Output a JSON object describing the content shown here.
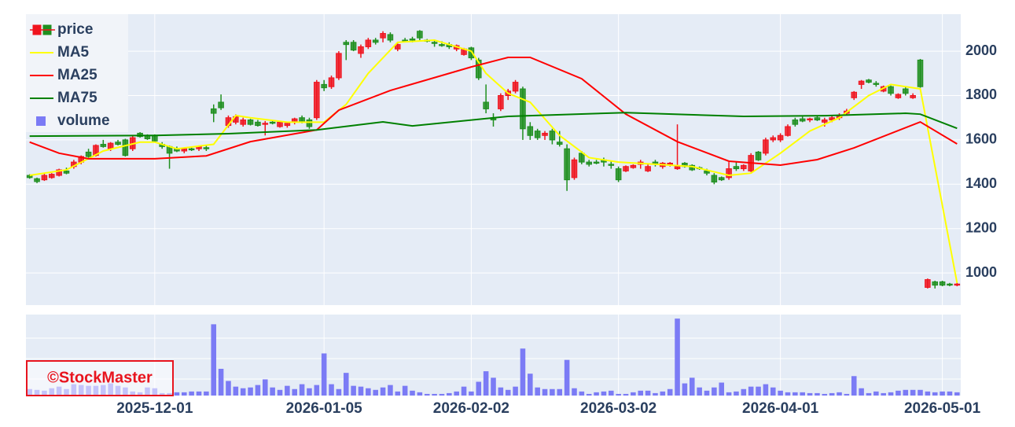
{
  "chart_data": {
    "type": "candlestick",
    "watermark": "©StockMaster",
    "x": [
      "2025-11-06",
      "2025-11-07",
      "2025-11-10",
      "2025-11-11",
      "2025-11-12",
      "2025-11-13",
      "2025-11-14",
      "2025-11-17",
      "2025-11-18",
      "2025-11-19",
      "2025-11-20",
      "2025-11-21",
      "2025-11-24",
      "2025-11-25",
      "2025-11-26",
      "2025-11-27",
      "2025-11-28",
      "2025-12-01",
      "2025-12-02",
      "2025-12-03",
      "2025-12-04",
      "2025-12-05",
      "2025-12-08",
      "2025-12-09",
      "2025-12-10",
      "2025-12-11",
      "2025-12-12",
      "2025-12-15",
      "2025-12-16",
      "2025-12-17",
      "2025-12-18",
      "2025-12-19",
      "2025-12-22",
      "2025-12-23",
      "2025-12-24",
      "2025-12-25",
      "2025-12-26",
      "2025-12-29",
      "2025-12-30",
      "2025-12-31",
      "2026-01-05",
      "2026-01-06",
      "2026-01-07",
      "2026-01-08",
      "2026-01-09",
      "2026-01-12",
      "2026-01-13",
      "2026-01-14",
      "2026-01-15",
      "2026-01-16",
      "2026-01-19",
      "2026-01-20",
      "2026-01-21",
      "2026-01-22",
      "2026-01-23",
      "2026-01-26",
      "2026-01-27",
      "2026-01-28",
      "2026-01-29",
      "2026-01-30",
      "2026-02-02",
      "2026-02-03",
      "2026-02-04",
      "2026-02-05",
      "2026-02-06",
      "2026-02-09",
      "2026-02-10",
      "2026-02-11",
      "2026-02-12",
      "2026-02-13",
      "2026-02-16",
      "2026-02-17",
      "2026-02-18",
      "2026-02-19",
      "2026-02-20",
      "2026-02-23",
      "2026-02-24",
      "2026-02-25",
      "2026-02-26",
      "2026-02-27",
      "2026-03-02",
      "2026-03-03",
      "2026-03-04",
      "2026-03-05",
      "2026-03-06",
      "2026-03-09",
      "2026-03-10",
      "2026-03-11",
      "2026-03-12",
      "2026-03-13",
      "2026-03-16",
      "2026-03-17",
      "2026-03-18",
      "2026-03-19",
      "2026-03-20",
      "2026-03-23",
      "2026-03-24",
      "2026-03-25",
      "2026-03-26",
      "2026-03-27",
      "2026-03-30",
      "2026-03-31",
      "2026-04-01",
      "2026-04-02",
      "2026-04-03",
      "2026-04-06",
      "2026-04-07",
      "2026-04-08",
      "2026-04-09",
      "2026-04-10",
      "2026-04-13",
      "2026-04-14",
      "2026-04-15",
      "2026-04-16",
      "2026-04-17",
      "2026-04-20",
      "2026-04-21",
      "2026-04-22",
      "2026-04-23",
      "2026-04-24",
      "2026-04-27",
      "2026-04-28",
      "2026-04-29",
      "2026-04-30",
      "2026-05-01",
      "2026-05-04",
      "2026-05-05"
    ],
    "xticks": [
      "2025-12-01",
      "2026-01-05",
      "2026-02-02",
      "2026-03-02",
      "2026-04-01",
      "2026-05-01"
    ],
    "ylim": [
      855,
      2167
    ],
    "yticks": [
      1000,
      1200,
      1400,
      1600,
      1800,
      2000
    ],
    "y2lim": [
      0,
      100
    ],
    "grid": true,
    "legend": "top-left",
    "series": [
      {
        "name": "price",
        "type": "candlestick",
        "increasing_color": "#f0141e",
        "decreasing_color": "#1f8f1f",
        "open": [
          1440,
          1425,
          1420,
          1430,
          1440,
          1460,
          1480,
          1500,
          1545,
          1530,
          1580,
          1560,
          1590,
          1600,
          1560,
          1630,
          1620,
          1620,
          1580,
          1570,
          1560,
          1550,
          1560,
          1560,
          1565,
          1740,
          1770,
          1665,
          1680,
          1670,
          1690,
          1680,
          1670,
          1680,
          1660,
          1665,
          1680,
          1700,
          1690,
          1700,
          1850,
          1840,
          1880,
          2040,
          2040,
          1990,
          2020,
          2050,
          2060,
          2075,
          2010,
          2050,
          2055,
          2090,
          2050,
          2040,
          2030,
          2030,
          2010,
          1985,
          2015,
          1960,
          1770,
          1700,
          1740,
          1800,
          1820,
          1830,
          1660,
          1640,
          1620,
          1640,
          1590,
          1560,
          1430,
          1540,
          1500,
          1500,
          1510,
          1490,
          1470,
          1460,
          1475,
          1490,
          1460,
          1500,
          1480,
          1490,
          1470,
          1495,
          1485,
          1475,
          1460,
          1440,
          1430,
          1430,
          1480,
          1470,
          1460,
          1545,
          1540,
          1600,
          1600,
          1620,
          1690,
          1695,
          1690,
          1700,
          1680,
          1690,
          1700,
          1720,
          1790,
          1850,
          1870,
          1855,
          1820,
          1840,
          1790,
          1830,
          1790,
          1960,
          935,
          960,
          960,
          950,
          945
        ],
        "high": [
          1445,
          1430,
          1450,
          1450,
          1470,
          1475,
          1510,
          1530,
          1560,
          1580,
          1600,
          1590,
          1600,
          1605,
          1620,
          1635,
          1625,
          1625,
          1590,
          1575,
          1570,
          1565,
          1570,
          1575,
          1575,
          1760,
          1805,
          1710,
          1715,
          1700,
          1695,
          1690,
          1685,
          1690,
          1685,
          1680,
          1700,
          1710,
          1700,
          1870,
          1870,
          1890,
          2000,
          2050,
          2050,
          2030,
          2060,
          2060,
          2090,
          2085,
          2035,
          2060,
          2065,
          2095,
          2055,
          2050,
          2045,
          2040,
          2030,
          2015,
          2020,
          1970,
          1850,
          1720,
          1810,
          1830,
          1870,
          1840,
          1680,
          1650,
          1640,
          1650,
          1640,
          1580,
          1520,
          1550,
          1510,
          1510,
          1520,
          1505,
          1480,
          1485,
          1490,
          1510,
          1490,
          1510,
          1500,
          1500,
          1670,
          1500,
          1490,
          1480,
          1470,
          1450,
          1435,
          1500,
          1500,
          1490,
          1540,
          1550,
          1610,
          1620,
          1630,
          1670,
          1700,
          1705,
          1700,
          1710,
          1700,
          1710,
          1720,
          1740,
          1820,
          1870,
          1875,
          1865,
          1845,
          1845,
          1810,
          1840,
          1810,
          1965,
          975,
          965,
          965,
          955,
          955
        ],
        "low": [
          1425,
          1405,
          1415,
          1425,
          1435,
          1445,
          1470,
          1490,
          1520,
          1525,
          1565,
          1550,
          1575,
          1525,
          1550,
          1610,
          1600,
          1590,
          1560,
          1470,
          1545,
          1540,
          1550,
          1550,
          1550,
          1680,
          1735,
          1655,
          1670,
          1660,
          1665,
          1660,
          1620,
          1670,
          1655,
          1655,
          1670,
          1675,
          1650,
          1690,
          1820,
          1830,
          1870,
          1960,
          2000,
          1970,
          2010,
          2030,
          2040,
          2040,
          2000,
          2040,
          2040,
          2050,
          2040,
          2020,
          2020,
          2010,
          2000,
          1980,
          1960,
          1870,
          1720,
          1660,
          1730,
          1780,
          1810,
          1600,
          1600,
          1600,
          1600,
          1580,
          1570,
          1370,
          1420,
          1490,
          1480,
          1490,
          1480,
          1470,
          1410,
          1455,
          1470,
          1470,
          1455,
          1480,
          1470,
          1480,
          1465,
          1475,
          1460,
          1465,
          1440,
          1400,
          1415,
          1420,
          1460,
          1460,
          1455,
          1505,
          1530,
          1590,
          1590,
          1615,
          1660,
          1680,
          1680,
          1685,
          1660,
          1680,
          1690,
          1710,
          1780,
          1830,
          1855,
          1840,
          1815,
          1800,
          1785,
          1800,
          1785,
          1835,
          930,
          930,
          940,
          940,
          940
        ],
        "close": [
          1430,
          1412,
          1440,
          1445,
          1465,
          1450,
          1500,
          1525,
          1525,
          1575,
          1570,
          1585,
          1580,
          1530,
          1610,
          1615,
          1605,
          1595,
          1570,
          1540,
          1550,
          1560,
          1555,
          1570,
          1560,
          1720,
          1745,
          1700,
          1705,
          1690,
          1670,
          1665,
          1675,
          1675,
          1680,
          1675,
          1695,
          1680,
          1660,
          1860,
          1835,
          1880,
          1990,
          2030,
          2005,
          2020,
          2050,
          2040,
          2080,
          2050,
          2030,
          2045,
          2050,
          2060,
          2045,
          2035,
          2025,
          2020,
          2025,
          2010,
          1970,
          1880,
          1740,
          1690,
          1800,
          1820,
          1860,
          1650,
          1620,
          1610,
          1630,
          1600,
          1580,
          1420,
          1510,
          1500,
          1490,
          1495,
          1500,
          1485,
          1420,
          1480,
          1485,
          1500,
          1480,
          1490,
          1495,
          1495,
          1480,
          1480,
          1465,
          1470,
          1450,
          1410,
          1420,
          1470,
          1470,
          1485,
          1530,
          1510,
          1600,
          1610,
          1620,
          1660,
          1670,
          1685,
          1695,
          1690,
          1690,
          1700,
          1710,
          1730,
          1815,
          1865,
          1860,
          1850,
          1840,
          1810,
          1805,
          1810,
          1800,
          1840,
          970,
          945,
          945,
          945,
          950
        ]
      },
      {
        "name": "MA5",
        "type": "line",
        "color": "#ffff00",
        "x": [
          "2025-11-06",
          "2025-11-13",
          "2025-11-20",
          "2025-11-27",
          "2025-12-01",
          "2025-12-04",
          "2025-12-11",
          "2025-12-16",
          "2025-12-18",
          "2025-12-25",
          "2026-01-05",
          "2026-01-08",
          "2026-01-13",
          "2026-01-19",
          "2026-01-26",
          "2026-02-02",
          "2026-02-04",
          "2026-02-09",
          "2026-02-12",
          "2026-02-18",
          "2026-02-24",
          "2026-03-02",
          "2026-03-09",
          "2026-03-16",
          "2026-03-23",
          "2026-03-26",
          "2026-04-01",
          "2026-04-07",
          "2026-04-13",
          "2026-04-17",
          "2026-04-22",
          "2026-04-28",
          "2026-05-05"
        ],
        "values": [
          1440,
          1465,
          1550,
          1590,
          1590,
          1560,
          1580,
          1710,
          1700,
          1680,
          1680,
          1760,
          1900,
          2040,
          2050,
          2000,
          1900,
          1810,
          1770,
          1620,
          1520,
          1500,
          1490,
          1480,
          1440,
          1450,
          1540,
          1640,
          1700,
          1800,
          1850,
          1830,
          955
        ]
      },
      {
        "name": "MA25",
        "type": "line",
        "color": "#ff0000",
        "x": [
          "2025-11-06",
          "2025-11-12",
          "2025-11-18",
          "2025-12-01",
          "2025-12-10",
          "2025-12-18",
          "2025-12-31",
          "2026-01-07",
          "2026-01-16",
          "2026-02-02",
          "2026-02-09",
          "2026-02-12",
          "2026-02-23",
          "2026-03-03",
          "2026-03-12",
          "2026-03-23",
          "2026-04-01",
          "2026-04-08",
          "2026-04-15",
          "2026-04-28",
          "2026-05-05"
        ],
        "values": [
          1590,
          1540,
          1515,
          1515,
          1528,
          1592,
          1645,
          1734,
          1823,
          1929,
          1972,
          1972,
          1876,
          1716,
          1592,
          1504,
          1486,
          1511,
          1564,
          1681,
          1582
        ]
      },
      {
        "name": "MA75",
        "type": "line",
        "color": "#008000",
        "x": [
          "2025-11-06",
          "2025-12-01",
          "2025-12-15",
          "2025-12-31",
          "2026-01-15",
          "2026-01-21",
          "2026-02-09",
          "2026-03-03",
          "2026-03-25",
          "2026-04-09",
          "2026-04-24",
          "2026-04-28",
          "2026-05-05"
        ],
        "values": [
          1617,
          1620,
          1628,
          1645,
          1681,
          1663,
          1706,
          1723,
          1706,
          1709,
          1720,
          1716,
          1652
        ]
      },
      {
        "name": "volume",
        "type": "bar",
        "color": "#7b7bf5",
        "axis": "y2",
        "values": [
          8,
          7,
          6,
          9,
          11,
          8,
          14,
          13,
          12,
          12,
          13,
          15,
          12,
          10,
          5,
          4,
          10,
          9,
          3,
          3,
          4,
          4,
          5,
          5,
          5,
          88,
          33,
          18,
          11,
          9,
          10,
          13,
          20,
          10,
          7,
          12,
          8,
          14,
          9,
          13,
          52,
          14,
          8,
          28,
          12,
          11,
          9,
          7,
          10,
          13,
          5,
          12,
          6,
          4,
          2,
          2,
          2,
          3,
          5,
          11,
          5,
          17,
          30,
          22,
          10,
          7,
          11,
          58,
          27,
          10,
          8,
          8,
          8,
          44,
          9,
          5,
          2,
          4,
          5,
          6,
          2,
          2,
          4,
          6,
          6,
          3,
          5,
          8,
          95,
          15,
          22,
          10,
          6,
          10,
          16,
          4,
          5,
          8,
          11,
          11,
          14,
          10,
          6,
          4,
          4,
          4,
          3,
          3,
          2,
          3,
          4,
          2,
          24,
          9,
          3,
          5,
          3,
          4,
          6,
          7,
          7,
          7,
          5,
          4,
          5,
          5,
          4
        ]
      }
    ]
  }
}
